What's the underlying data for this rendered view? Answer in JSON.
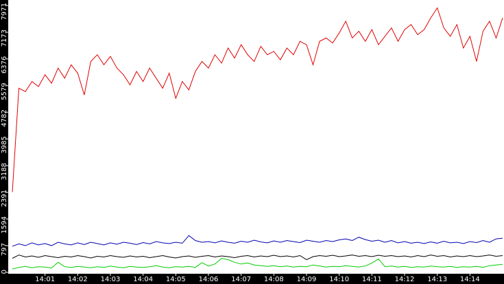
{
  "chart_data": {
    "type": "line",
    "x": [
      0,
      0.2,
      0.4,
      0.6,
      0.8,
      1,
      1.2,
      1.4,
      1.6,
      1.8,
      2,
      2.2,
      2.4,
      2.6,
      2.8,
      3,
      3.2,
      3.4,
      3.6,
      3.8,
      4,
      4.2,
      4.4,
      4.6,
      4.8,
      5,
      5.2,
      5.4,
      5.6,
      5.8,
      6,
      6.2,
      6.4,
      6.6,
      6.8,
      7,
      7.2,
      7.4,
      7.6,
      7.8,
      8,
      8.2,
      8.4,
      8.6,
      8.8,
      9,
      9.2,
      9.4,
      9.6,
      9.8,
      10,
      10.2,
      10.4,
      10.6,
      10.8,
      11,
      11.2,
      11.4,
      11.6,
      11.8,
      12,
      12.2,
      12.4,
      12.6,
      12.8,
      13,
      13.2,
      13.4,
      13.6,
      13.8,
      14,
      14.2,
      14.4,
      14.6,
      14.8,
      15
    ],
    "xlim": [
      0,
      15
    ],
    "xticks": [
      {
        "value": 1,
        "label": "14:01"
      },
      {
        "value": 2,
        "label": "14:02"
      },
      {
        "value": 3,
        "label": "14:03"
      },
      {
        "value": 4,
        "label": "14:04"
      },
      {
        "value": 5,
        "label": "14:05"
      },
      {
        "value": 6,
        "label": "14:06"
      },
      {
        "value": 7,
        "label": "14:07"
      },
      {
        "value": 8,
        "label": "14:08"
      },
      {
        "value": 9,
        "label": "14:09"
      },
      {
        "value": 10,
        "label": "14:10"
      },
      {
        "value": 11,
        "label": "14:11"
      },
      {
        "value": 12,
        "label": "14:12"
      },
      {
        "value": 13,
        "label": "14:13"
      },
      {
        "value": 14,
        "label": "14:14"
      }
    ],
    "ylim": [
      0,
      7971
    ],
    "yticks": [
      0,
      797,
      1594,
      2391,
      3188,
      3985,
      4782,
      5579,
      6376,
      7173,
      7971
    ],
    "series": [
      {
        "color": "#e00000",
        "values": [
          2400,
          5500,
          5400,
          5700,
          5550,
          5900,
          5650,
          6100,
          5800,
          6200,
          5950,
          5300,
          6300,
          6500,
          6200,
          6450,
          6100,
          5900,
          5600,
          6000,
          5700,
          6100,
          5800,
          5500,
          5950,
          5200,
          5700,
          5450,
          6000,
          6300,
          6100,
          6500,
          6250,
          6700,
          6400,
          6800,
          6500,
          6300,
          6750,
          6500,
          6600,
          6350,
          6700,
          6500,
          6900,
          6800,
          6200,
          6900,
          7000,
          6850,
          7150,
          7500,
          7000,
          7200,
          6900,
          7250,
          6800,
          7050,
          7300,
          6900,
          7250,
          7400,
          7100,
          7250,
          7600,
          7900,
          7300,
          7050,
          7400,
          6700,
          7050,
          6300,
          7200,
          7500,
          7000,
          7600
        ]
      },
      {
        "color": "#0000b0",
        "values": [
          780,
          850,
          800,
          880,
          820,
          860,
          800,
          900,
          850,
          820,
          880,
          830,
          900,
          860,
          820,
          880,
          840,
          900,
          870,
          830,
          890,
          850,
          920,
          880,
          860,
          900,
          870,
          1100,
          950,
          900,
          920,
          880,
          940,
          900,
          870,
          930,
          900,
          960,
          910,
          880,
          940,
          900,
          950,
          920,
          890,
          960,
          930,
          900,
          950,
          920,
          970,
          1000,
          950,
          1050,
          980,
          930,
          960,
          900,
          950,
          880,
          920,
          870,
          900,
          860,
          910,
          870,
          930,
          880,
          900,
          860,
          920,
          890,
          950,
          900,
          1000,
          1020
        ]
      },
      {
        "color": "#000000",
        "values": [
          420,
          520,
          460,
          490,
          450,
          500,
          470,
          440,
          480,
          460,
          500,
          470,
          430,
          480,
          460,
          500,
          470,
          450,
          490,
          460,
          480,
          440,
          470,
          500,
          460,
          430,
          470,
          490,
          450,
          480,
          500,
          460,
          490,
          470,
          440,
          480,
          500,
          460,
          490,
          470,
          510,
          470,
          490,
          460,
          500,
          380,
          470,
          500,
          480,
          510,
          470,
          490,
          520,
          480,
          500,
          470,
          510,
          480,
          500,
          470,
          490,
          460,
          500,
          470,
          520,
          480,
          500,
          460,
          490,
          470,
          500,
          470,
          490,
          520,
          480,
          500
        ]
      },
      {
        "color": "#00cc00",
        "values": [
          100,
          150,
          180,
          140,
          170,
          160,
          130,
          300,
          170,
          150,
          180,
          160,
          140,
          170,
          150,
          190,
          160,
          140,
          180,
          160,
          150,
          170,
          200,
          160,
          140,
          170,
          160,
          180,
          150,
          290,
          190,
          250,
          420,
          380,
          300,
          250,
          280,
          220,
          200,
          180,
          200,
          170,
          190,
          160,
          180,
          170,
          220,
          190,
          160,
          180,
          170,
          200,
          180,
          160,
          190,
          280,
          400,
          170,
          190,
          160,
          180,
          150,
          170,
          160,
          190,
          170,
          160,
          180,
          150,
          170,
          160,
          180,
          150,
          200,
          220,
          240
        ]
      }
    ]
  }
}
